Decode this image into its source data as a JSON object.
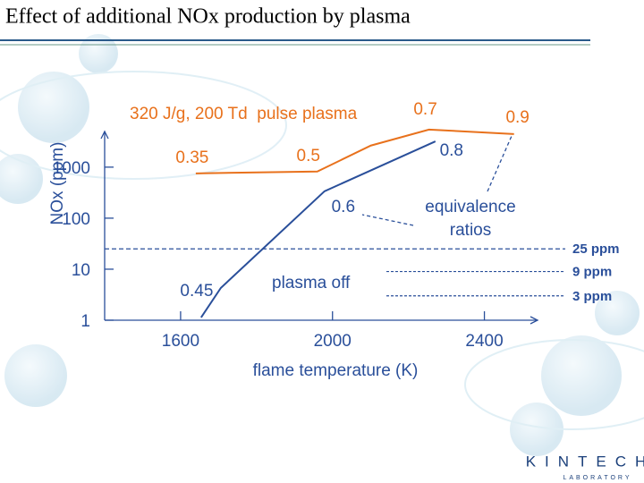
{
  "header": {
    "title": "Effect of additional NOx production by plasma"
  },
  "chart_data": {
    "type": "line",
    "x_label": "flame temperature (K)",
    "y_label": "NOx (ppm)",
    "xlim": [
      1400,
      2540
    ],
    "xticks": [
      1600,
      2000,
      2400
    ],
    "ylim": [
      1,
      5000
    ],
    "yticks": [
      1,
      10,
      100,
      1000
    ],
    "y_scale": "log",
    "series": [
      {
        "name": "320 J/g, 200 Td  pulse plasma",
        "color": "#e8711c",
        "x": [
          1640,
          1960,
          2101,
          2254,
          2478
        ],
        "values": [
          755,
          820,
          2650,
          5450,
          4450
        ],
        "point_labels": [
          "0.35",
          "0.5",
          null,
          "0.7",
          "0.9"
        ]
      },
      {
        "name": "plasma off",
        "color": "#2a4f9a",
        "x": [
          1654,
          1706,
          1979,
          2271
        ],
        "values": [
          1.13,
          4.3,
          337,
          3200
        ],
        "point_labels": [
          null,
          "0.45",
          "0.6",
          "0.8"
        ]
      }
    ],
    "annotations": [
      "equivalence",
      "ratios"
    ],
    "thresholds": [
      {
        "value": 25,
        "label": "25 ppm"
      },
      {
        "value": 9,
        "label": "9 ppm"
      },
      {
        "value": 3,
        "label": "3 ppm"
      }
    ]
  },
  "logo": {
    "name": "KINTECH",
    "sub": "LABORATORY"
  }
}
